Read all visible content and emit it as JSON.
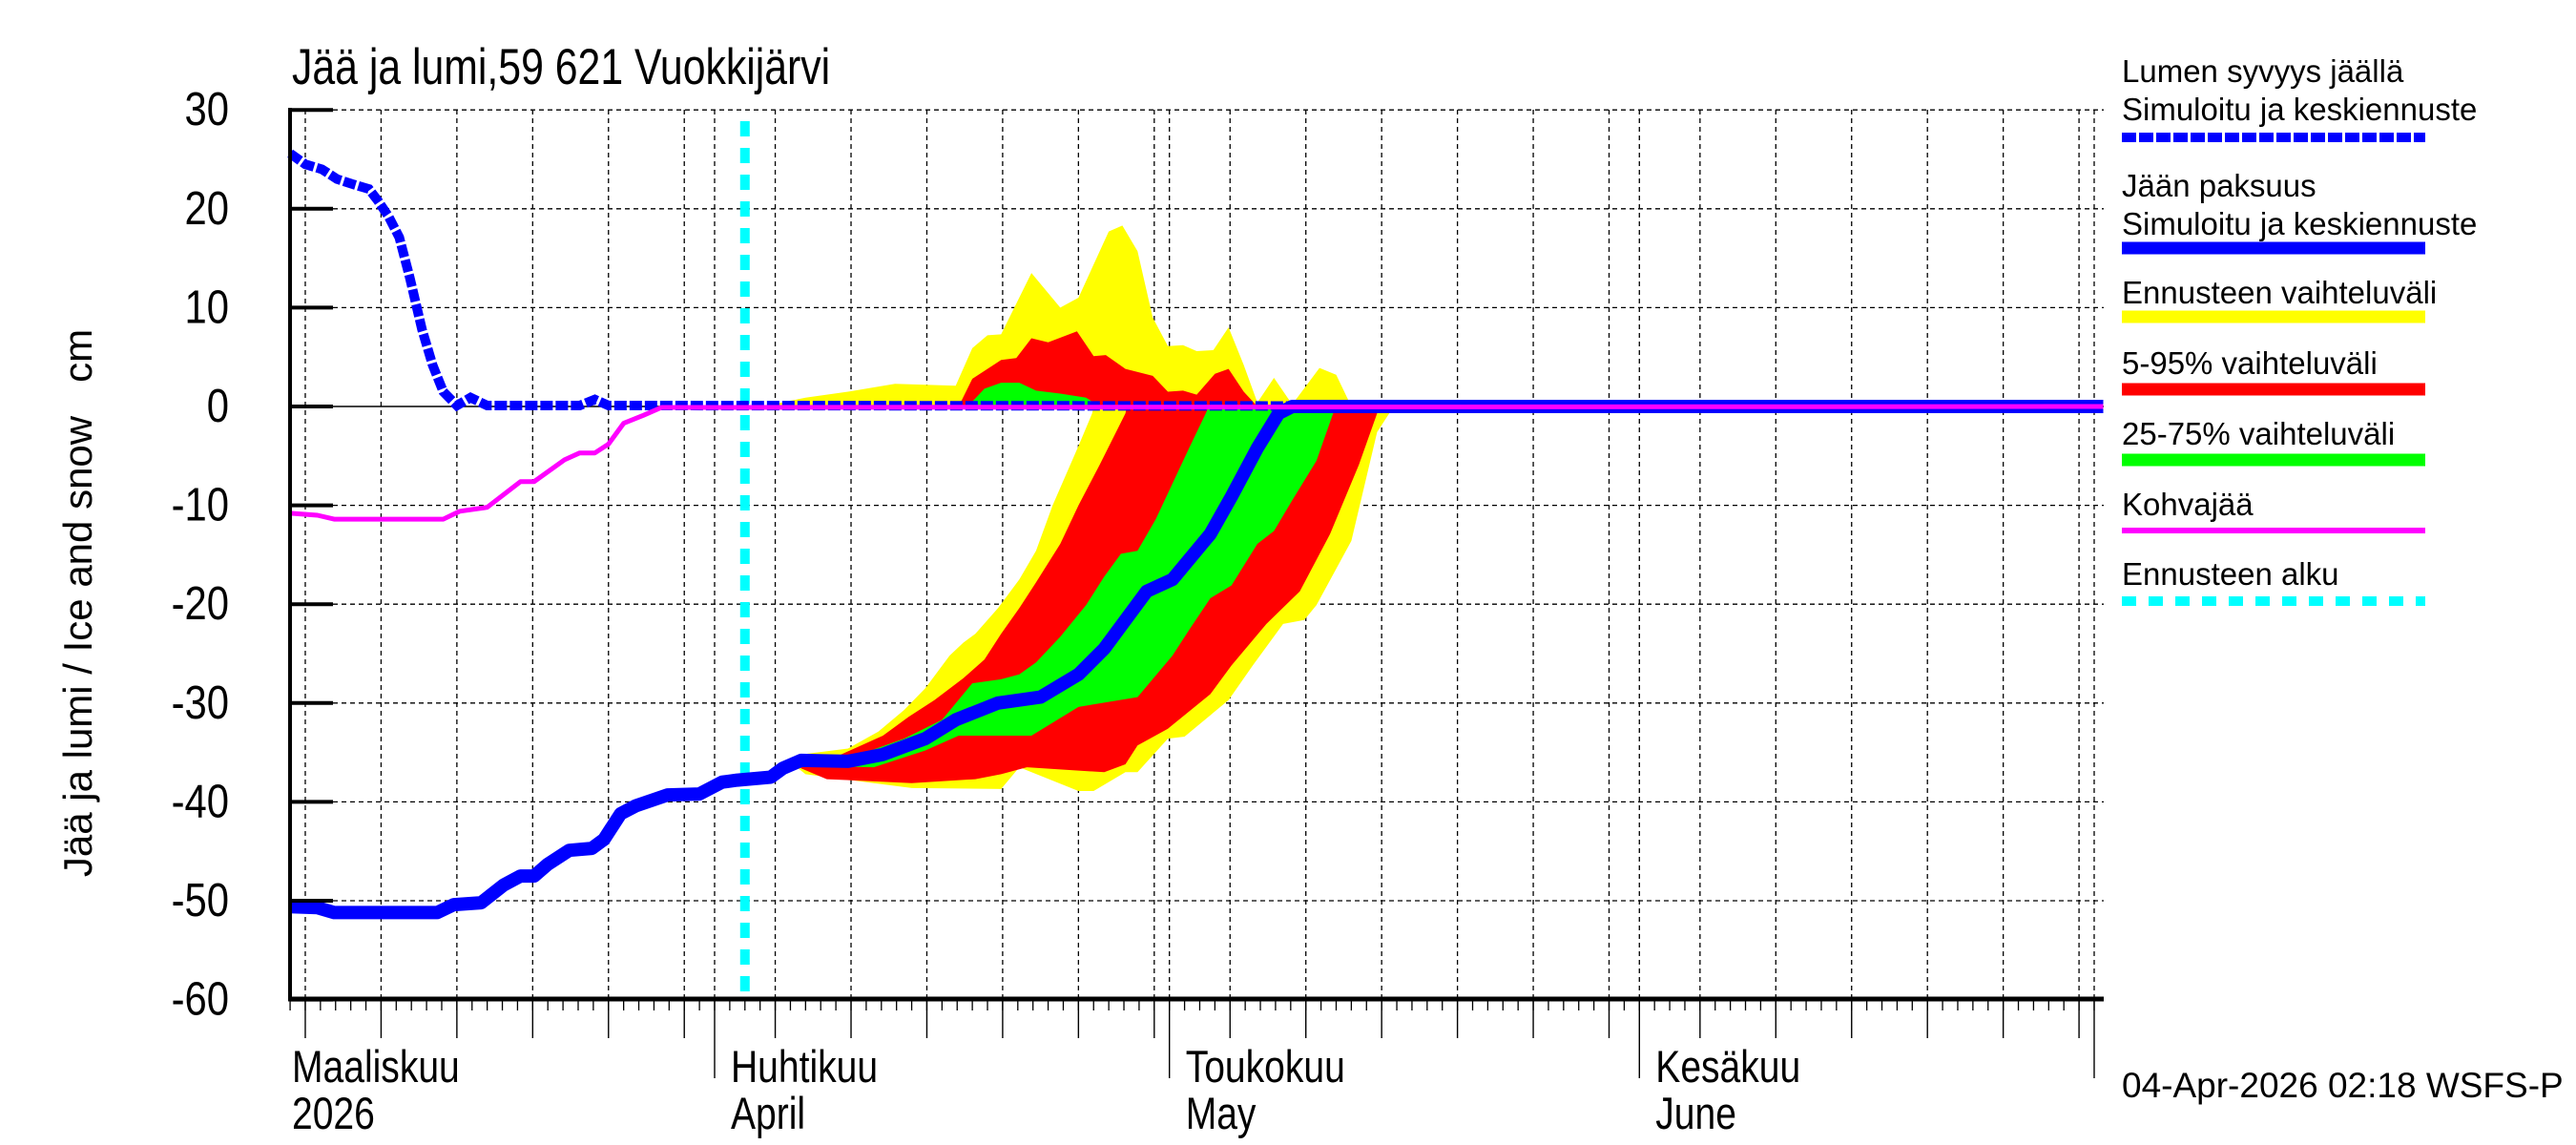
{
  "chart_data": {
    "type": "line",
    "title": "Jää ja lumi,59 621 Vuokkijärvi",
    "xlabel": "",
    "ylabel": "Jää ja lumi / Ice and snow   cm",
    "ylim": [
      -60,
      30
    ],
    "yticks": [
      30,
      20,
      10,
      0,
      -10,
      -20,
      -30,
      -40,
      -50,
      -60
    ],
    "grid": true,
    "legend_position": "right",
    "x_unit": "days since 2026-03-01",
    "xlim": [
      3.0,
      122.6
    ],
    "x_month_labels": [
      {
        "day": 4,
        "line1": "Maaliskuu",
        "line2": "2026"
      },
      {
        "day": 31,
        "line1": "Huhtikuu",
        "line2": "April"
      },
      {
        "day": 61,
        "line1": "Toukokuu",
        "line2": "May"
      },
      {
        "day": 92,
        "line1": "Kesäkuu",
        "line2": "June"
      }
    ],
    "month_boundaries": [
      31,
      61,
      92,
      122
    ],
    "forecast_start_day": 33.0,
    "series": [
      {
        "name": "Lumen syvyys jäällä – Simuloitu ja keskiennuste",
        "style": "dotted",
        "color": "#0000ff",
        "points": [
          [
            3.0,
            25.6
          ],
          [
            4.0,
            24.5
          ],
          [
            5.1,
            24.0
          ],
          [
            6.1,
            23.0
          ],
          [
            7.1,
            22.5
          ],
          [
            8.2,
            22.0
          ],
          [
            8.8,
            20.8
          ],
          [
            9.5,
            19.2
          ],
          [
            10.2,
            17.1
          ],
          [
            10.9,
            13.0
          ],
          [
            11.7,
            7.8
          ],
          [
            12.4,
            4.2
          ],
          [
            13.1,
            1.5
          ],
          [
            14.0,
            0.1
          ],
          [
            14.9,
            0.9
          ],
          [
            16.0,
            0.1
          ],
          [
            22.1,
            0.1
          ],
          [
            23.1,
            0.7
          ],
          [
            24.0,
            0.1
          ],
          [
            122.6,
            0
          ]
        ]
      },
      {
        "name": "Jään paksuus – Simuloitu ja keskiennuste",
        "style": "solid-thick",
        "color": "#0000ff",
        "points": [
          [
            3.0,
            -50.6
          ],
          [
            4.8,
            -50.7
          ],
          [
            5.9,
            -51.2
          ],
          [
            12.7,
            -51.2
          ],
          [
            13.8,
            -50.4
          ],
          [
            15.6,
            -50.2
          ],
          [
            17.1,
            -48.4
          ],
          [
            18.2,
            -47.5
          ],
          [
            19.1,
            -47.5
          ],
          [
            20.0,
            -46.3
          ],
          [
            21.4,
            -44.9
          ],
          [
            22.9,
            -44.7
          ],
          [
            23.7,
            -43.8
          ],
          [
            24.8,
            -41.2
          ],
          [
            25.8,
            -40.4
          ],
          [
            27.9,
            -39.3
          ],
          [
            30.0,
            -39.2
          ],
          [
            31.5,
            -38.0
          ],
          [
            32.5,
            -37.8
          ],
          [
            34.7,
            -37.5
          ],
          [
            35.5,
            -36.6
          ],
          [
            36.7,
            -35.8
          ],
          [
            39.8,
            -35.9
          ],
          [
            42.1,
            -35.2
          ],
          [
            44.9,
            -33.6
          ],
          [
            46.9,
            -31.7
          ],
          [
            49.7,
            -30.0
          ],
          [
            52.5,
            -29.4
          ],
          [
            55.0,
            -27.1
          ],
          [
            56.7,
            -24.5
          ],
          [
            59.5,
            -18.7
          ],
          [
            61.2,
            -17.5
          ],
          [
            63.7,
            -12.9
          ],
          [
            65.1,
            -9.1
          ],
          [
            66.8,
            -4.2
          ],
          [
            68.2,
            -0.7
          ],
          [
            69.1,
            0
          ],
          [
            122.6,
            0
          ]
        ]
      },
      {
        "name": "Kohvajää",
        "style": "solid",
        "color": "#ff00ff",
        "points": [
          [
            3.0,
            -10.8
          ],
          [
            4.8,
            -11.0
          ],
          [
            5.9,
            -11.4
          ],
          [
            13.1,
            -11.4
          ],
          [
            14.2,
            -10.6
          ],
          [
            16.0,
            -10.2
          ],
          [
            18.2,
            -7.6
          ],
          [
            19.1,
            -7.6
          ],
          [
            21.1,
            -5.4
          ],
          [
            22.1,
            -4.7
          ],
          [
            23.1,
            -4.7
          ],
          [
            24.0,
            -3.8
          ],
          [
            25.0,
            -1.7
          ],
          [
            26.3,
            -0.9
          ],
          [
            27.5,
            -0.1
          ],
          [
            122.6,
            0
          ]
        ]
      }
    ],
    "bands": [
      {
        "name": "Ennusteen vaihteluväli (snow)",
        "color": "#ffff00",
        "polygon": [
          [
            34.2,
            0
          ],
          [
            37.0,
            0.9
          ],
          [
            39.8,
            1.5
          ],
          [
            42.9,
            2.3
          ],
          [
            46.9,
            2.1
          ],
          [
            48.0,
            5.9
          ],
          [
            49.0,
            7.2
          ],
          [
            49.9,
            7.3
          ],
          [
            51.9,
            13.5
          ],
          [
            53.8,
            10.0
          ],
          [
            55.0,
            11.0
          ],
          [
            57.0,
            17.7
          ],
          [
            57.9,
            18.3
          ],
          [
            58.9,
            15.7
          ],
          [
            59.9,
            9.0
          ],
          [
            60.9,
            6.1
          ],
          [
            61.9,
            6.2
          ],
          [
            62.8,
            5.6
          ],
          [
            63.9,
            5.7
          ],
          [
            64.9,
            8.0
          ],
          [
            65.9,
            4.2
          ],
          [
            66.8,
            0.4
          ],
          [
            67.9,
            2.9
          ],
          [
            69.1,
            0.2
          ],
          [
            70.9,
            3.9
          ],
          [
            72.0,
            3.2
          ],
          [
            73.0,
            0
          ]
        ]
      },
      {
        "name": "5-95% vaihteluväli (snow)",
        "color": "#ff0000",
        "polygon": [
          [
            47.1,
            0
          ],
          [
            48.0,
            2.8
          ],
          [
            49.9,
            4.7
          ],
          [
            50.9,
            4.9
          ],
          [
            51.9,
            6.9
          ],
          [
            53.0,
            6.5
          ],
          [
            54.9,
            7.6
          ],
          [
            56.0,
            5.1
          ],
          [
            56.8,
            5.2
          ],
          [
            58.1,
            3.8
          ],
          [
            59.9,
            3.1
          ],
          [
            60.9,
            1.5
          ],
          [
            61.9,
            1.6
          ],
          [
            62.8,
            1.2
          ],
          [
            64.0,
            3.3
          ],
          [
            64.9,
            3.8
          ],
          [
            65.9,
            1.5
          ],
          [
            66.8,
            0
          ]
        ]
      },
      {
        "name": "25-75% vaihteluväli (snow)",
        "color": "#00ff00",
        "polygon": [
          [
            47.7,
            0
          ],
          [
            48.8,
            1.8
          ],
          [
            49.9,
            2.4
          ],
          [
            51.1,
            2.4
          ],
          [
            52.2,
            1.6
          ],
          [
            53.8,
            1.3
          ],
          [
            55.5,
            0.9
          ],
          [
            56.4,
            0
          ]
        ]
      },
      {
        "name": "Ennusteen vaihteluväli (ice)",
        "color": "#ffff00",
        "polygon": [
          [
            36.1,
            -35.8
          ],
          [
            36.7,
            -35.2
          ],
          [
            39.8,
            -34.6
          ],
          [
            41.8,
            -32.9
          ],
          [
            43.5,
            -30.7
          ],
          [
            44.9,
            -28.5
          ],
          [
            46.5,
            -25.2
          ],
          [
            47.4,
            -23.9
          ],
          [
            48.2,
            -23.0
          ],
          [
            49.7,
            -20.4
          ],
          [
            51.1,
            -17.5
          ],
          [
            52.2,
            -14.6
          ],
          [
            53.3,
            -10.0
          ],
          [
            55.0,
            -4.0
          ],
          [
            55.9,
            -0.7
          ],
          [
            56.0,
            0
          ],
          [
            75.7,
            0
          ],
          [
            75.5,
            -0.7
          ],
          [
            74.7,
            -2.6
          ],
          [
            73.0,
            -13.6
          ],
          [
            70.7,
            -20.1
          ],
          [
            69.9,
            -21.6
          ],
          [
            68.5,
            -22.0
          ],
          [
            66.5,
            -26.2
          ],
          [
            64.9,
            -29.7
          ],
          [
            62.0,
            -33.4
          ],
          [
            60.9,
            -33.6
          ],
          [
            58.9,
            -37.0
          ],
          [
            58.1,
            -37.0
          ],
          [
            56.0,
            -38.9
          ],
          [
            55.0,
            -38.9
          ],
          [
            51.1,
            -36.5
          ],
          [
            49.9,
            -38.7
          ],
          [
            44.0,
            -38.6
          ],
          [
            37.0,
            -37.2
          ],
          [
            36.1,
            -36.1
          ]
        ]
      },
      {
        "name": "5-95% vaihteluväli (ice)",
        "color": "#ff0000",
        "polygon": [
          [
            36.7,
            -35.8
          ],
          [
            39.2,
            -35.3
          ],
          [
            42.1,
            -33.3
          ],
          [
            43.8,
            -31.4
          ],
          [
            45.5,
            -29.7
          ],
          [
            47.4,
            -27.5
          ],
          [
            48.8,
            -25.6
          ],
          [
            49.9,
            -23.0
          ],
          [
            51.1,
            -20.4
          ],
          [
            52.2,
            -17.8
          ],
          [
            53.8,
            -13.9
          ],
          [
            55.0,
            -10.0
          ],
          [
            56.4,
            -5.9
          ],
          [
            58.1,
            -0.7
          ],
          [
            58.2,
            0
          ],
          [
            74.9,
            0
          ],
          [
            74.7,
            -0.7
          ],
          [
            73.5,
            -5.9
          ],
          [
            71.6,
            -12.9
          ],
          [
            69.6,
            -18.7
          ],
          [
            67.4,
            -22.0
          ],
          [
            65.1,
            -26.2
          ],
          [
            63.7,
            -29.1
          ],
          [
            60.9,
            -32.6
          ],
          [
            58.9,
            -34.3
          ],
          [
            58.1,
            -36.2
          ],
          [
            56.7,
            -37.0
          ],
          [
            51.6,
            -36.5
          ],
          [
            49.9,
            -37.2
          ],
          [
            48.2,
            -37.7
          ],
          [
            44.0,
            -38.1
          ],
          [
            38.4,
            -37.7
          ],
          [
            36.7,
            -36.6
          ]
        ]
      },
      {
        "name": "25-75% vaihteluväli (ice)",
        "color": "#00ff00",
        "polygon": [
          [
            38.0,
            -35.9
          ],
          [
            41.3,
            -34.8
          ],
          [
            43.5,
            -33.6
          ],
          [
            46.0,
            -31.7
          ],
          [
            48.0,
            -28.0
          ],
          [
            49.9,
            -27.6
          ],
          [
            51.1,
            -27.1
          ],
          [
            52.2,
            -25.9
          ],
          [
            53.8,
            -23.3
          ],
          [
            55.5,
            -20.1
          ],
          [
            56.7,
            -17.2
          ],
          [
            57.8,
            -14.9
          ],
          [
            58.9,
            -14.6
          ],
          [
            60.1,
            -11.4
          ],
          [
            61.2,
            -7.8
          ],
          [
            62.3,
            -4.2
          ],
          [
            63.4,
            -0.7
          ],
          [
            63.6,
            0
          ],
          [
            72.0,
            0
          ],
          [
            71.8,
            -0.7
          ],
          [
            70.7,
            -5.5
          ],
          [
            69.1,
            -9.5
          ],
          [
            67.9,
            -12.6
          ],
          [
            66.8,
            -13.9
          ],
          [
            65.1,
            -18.1
          ],
          [
            63.7,
            -19.4
          ],
          [
            62.3,
            -22.6
          ],
          [
            61.2,
            -25.2
          ],
          [
            58.9,
            -29.4
          ],
          [
            55.0,
            -30.4
          ],
          [
            51.9,
            -33.3
          ],
          [
            47.1,
            -33.3
          ],
          [
            44.9,
            -34.8
          ],
          [
            41.5,
            -36.5
          ],
          [
            38.6,
            -36.4
          ]
        ]
      }
    ]
  },
  "legend": {
    "items": [
      {
        "label1": "Lumen syvyys jäällä",
        "label2": "Simuloitu ja keskiennuste",
        "color": "#0000ff",
        "style": "dotted"
      },
      {
        "label1": "Jään paksuus",
        "label2": "Simuloitu ja keskiennuste",
        "color": "#0000ff",
        "style": "solid-thick"
      },
      {
        "label1": "Ennusteen vaihteluväli",
        "color": "#ffff00",
        "style": "band"
      },
      {
        "label1": "5-95% vaihteluväli",
        "color": "#ff0000",
        "style": "band"
      },
      {
        "label1": "25-75% vaihteluväli",
        "color": "#00ff00",
        "style": "band"
      },
      {
        "label1": "Kohvajää",
        "color": "#ff00ff",
        "style": "solid"
      },
      {
        "label1": "Ennusteen alku",
        "color": "#00ffff",
        "style": "dashed"
      }
    ]
  },
  "footer": {
    "timestamp": "04-Apr-2026 02:18 WSFS-P"
  },
  "colors": {
    "snow": "#0000ff",
    "ice": "#0000ff",
    "range": "#ffff00",
    "p5_95": "#ff0000",
    "p25_75": "#00ff00",
    "kohvajaa": "#ff00ff",
    "forecast_start": "#00ffff"
  }
}
